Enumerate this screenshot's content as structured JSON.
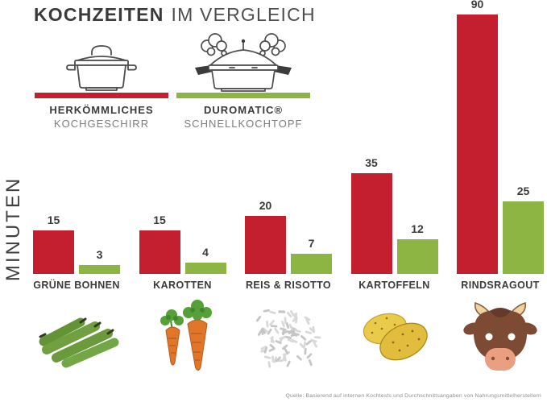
{
  "title": {
    "bold": "KOCHZEITEN",
    "light": "IM VERGLEICH"
  },
  "legend": {
    "conventional": {
      "line1": "HERKÖMMLICHES",
      "line2": "KOCHGESCHIRR",
      "color": "#c41f2e",
      "icon": "cooking-pot"
    },
    "duromatic": {
      "line1": "DUROMATIC®",
      "line2": "SCHNELLKOCHTOPF",
      "color": "#8db544",
      "icon": "pressure-cooker"
    }
  },
  "axis": {
    "ylabel": "MINUTEN"
  },
  "groups": [
    {
      "icon": "green-beans"
    },
    {
      "icon": "carrots"
    },
    {
      "icon": "rice"
    },
    {
      "icon": "potatoes"
    },
    {
      "icon": "beef-cow"
    }
  ],
  "footer": "Quelle: Basierend auf internen Kochtests und Durchschnittsangaben von Nahrungsmittelherstellern",
  "chart_data": {
    "type": "bar",
    "title": "KOCHZEITEN IM VERGLEICH",
    "ylabel": "MINUTEN",
    "unit": "Minuten",
    "categories": [
      "GRÜNE BOHNEN",
      "KAROTTEN",
      "REIS & RISOTTO",
      "KARTOFFELN",
      "RINDSRAGOUT"
    ],
    "series": [
      {
        "name": "HERKÖMMLICHES KOCHGESCHIRR",
        "color": "#c41f2e",
        "values": [
          15,
          15,
          20,
          35,
          90
        ]
      },
      {
        "name": "DUROMATIC® SCHNELLKOCHTOPF",
        "color": "#8db544",
        "values": [
          3,
          4,
          7,
          12,
          25
        ]
      }
    ],
    "ylim": [
      0,
      90
    ],
    "grid": false,
    "value_labels": true,
    "legend_position": "top-left"
  }
}
